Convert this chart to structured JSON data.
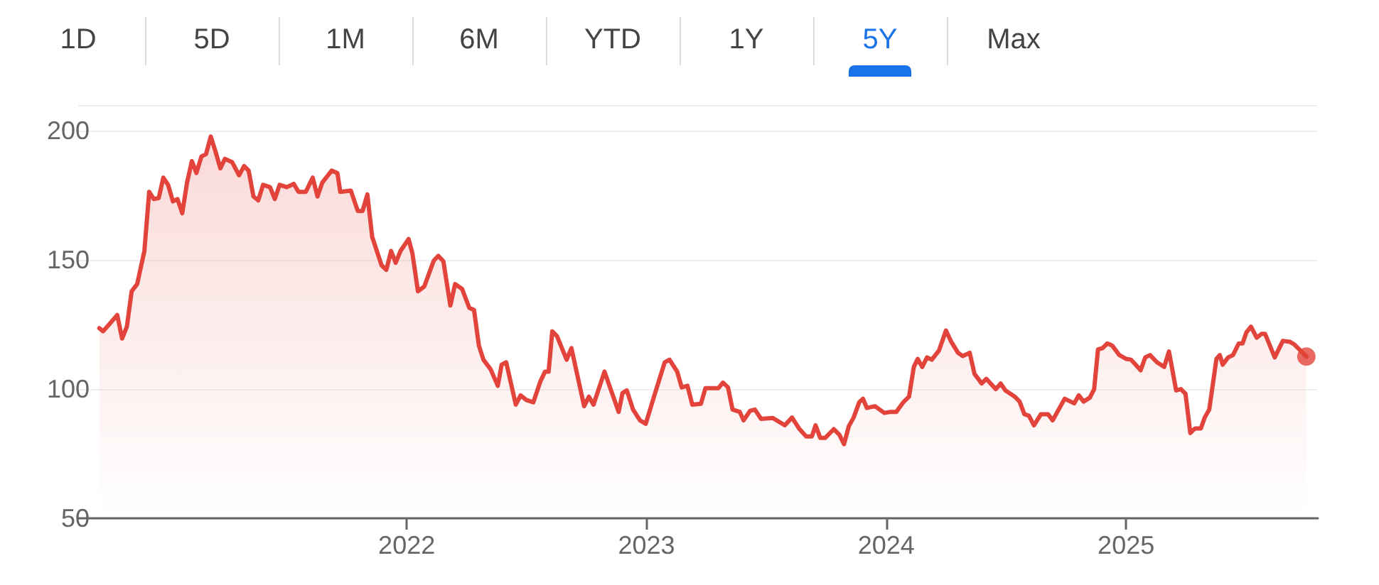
{
  "chart_data": {
    "type": "area",
    "annotations": [
      "1D",
      "5D",
      "1M",
      "6M",
      "YTD",
      "1Y",
      "5Y",
      "Max"
    ],
    "xlim": [
      2020.63,
      2025.8
    ],
    "xticks": [
      2022,
      2023,
      2024,
      2025
    ],
    "ylim": [
      50,
      210
    ],
    "yticks": [
      50,
      100,
      150,
      200
    ],
    "grid": "y",
    "marker": "none",
    "line_style": "solid",
    "series": [
      {
        "color": "#e2433a",
        "x": [
          2020.718,
          2020.734,
          2020.793,
          2020.813,
          2020.833,
          2020.853,
          2020.876,
          2020.906,
          2020.926,
          2020.945,
          2020.966,
          2020.985,
          2021.005,
          2021.025,
          2021.044,
          2021.064,
          2021.084,
          2021.104,
          2021.123,
          2021.144,
          2021.163,
          2021.183,
          2021.203,
          2021.223,
          2021.242,
          2021.272,
          2021.301,
          2021.322,
          2021.341,
          2021.361,
          2021.381,
          2021.401,
          2021.43,
          2021.45,
          2021.47,
          2021.5,
          2021.529,
          2021.549,
          2021.579,
          2021.608,
          2021.628,
          2021.648,
          2021.687,
          2021.711,
          2021.723,
          2021.767,
          2021.796,
          2021.816,
          2021.836,
          2021.856,
          2021.895,
          2021.915,
          2021.935,
          2021.954,
          2021.974,
          2022.008,
          2022.024,
          2022.047,
          2022.073,
          2022.113,
          2022.132,
          2022.153,
          2022.182,
          2022.202,
          2022.231,
          2022.261,
          2022.281,
          2022.301,
          2022.32,
          2022.35,
          2022.38,
          2022.396,
          2022.415,
          2022.455,
          2022.475,
          2022.499,
          2022.528,
          2022.558,
          2022.577,
          2022.592,
          2022.607,
          2022.627,
          2022.667,
          2022.687,
          2022.74,
          2022.76,
          2022.779,
          2022.825,
          2022.884,
          2022.9,
          2022.918,
          2022.944,
          2022.973,
          2022.997,
          2023.033,
          2023.076,
          2023.096,
          2023.128,
          2023.147,
          2023.171,
          2023.191,
          2023.227,
          2023.246,
          2023.3,
          2023.319,
          2023.34,
          2023.359,
          2023.389,
          2023.405,
          2023.432,
          2023.452,
          2023.478,
          2023.527,
          2023.577,
          2023.607,
          2023.636,
          2023.666,
          2023.69,
          2023.705,
          2023.725,
          2023.745,
          2023.781,
          2023.804,
          2023.824,
          2023.844,
          2023.864,
          2023.887,
          2023.903,
          2023.919,
          2023.953,
          2023.992,
          2024.018,
          2024.042,
          2024.071,
          2024.095,
          2024.115,
          2024.131,
          2024.15,
          2024.17,
          2024.19,
          2024.22,
          2024.249,
          2024.269,
          2024.299,
          2024.319,
          2024.348,
          2024.368,
          2024.398,
          2024.417,
          2024.457,
          2024.477,
          2024.497,
          2024.536,
          2024.556,
          2024.576,
          2024.595,
          2024.616,
          2024.645,
          2024.675,
          2024.694,
          2024.744,
          2024.784,
          2024.803,
          2024.823,
          2024.849,
          2024.867,
          2024.883,
          2024.902,
          2024.922,
          2024.942,
          2024.972,
          2025.001,
          2025.021,
          2025.061,
          2025.08,
          2025.1,
          2025.129,
          2025.159,
          2025.179,
          2025.209,
          2025.229,
          2025.248,
          2025.268,
          2025.288,
          2025.312,
          2025.328,
          2025.347,
          2025.377,
          2025.391,
          2025.403,
          2025.426,
          2025.446,
          2025.47,
          2025.486,
          2025.502,
          2025.521,
          2025.545,
          2025.565,
          2025.58,
          2025.62,
          2025.654,
          2025.684,
          2025.703,
          2025.727,
          2025.752
        ],
        "values": [
          123.6,
          122.4,
          128.7,
          119.6,
          124.2,
          137.9,
          140.7,
          153.5,
          176.4,
          173.6,
          174.0,
          181.9,
          179.1,
          172.7,
          173.6,
          168.1,
          180.0,
          188.3,
          183.7,
          190.1,
          191.0,
          197.8,
          191.9,
          185.5,
          189.2,
          187.9,
          182.8,
          186.4,
          184.6,
          174.6,
          173.1,
          179.1,
          178.2,
          173.6,
          179.1,
          178.2,
          179.5,
          176.4,
          176.4,
          181.9,
          174.6,
          180.0,
          184.6,
          183.7,
          176.4,
          176.9,
          169.0,
          169.0,
          175.4,
          159.0,
          148.0,
          146.2,
          153.5,
          148.9,
          153.5,
          158.1,
          152.5,
          137.9,
          139.7,
          149.8,
          151.6,
          149.5,
          132.4,
          140.7,
          138.8,
          131.5,
          130.6,
          116.9,
          111.4,
          107.7,
          101.3,
          109.5,
          110.4,
          94.0,
          97.6,
          95.8,
          94.9,
          103.1,
          106.8,
          106.8,
          122.4,
          120.5,
          111.4,
          115.9,
          93.4,
          97.1,
          94.0,
          106.8,
          91.2,
          98.5,
          99.5,
          92.1,
          87.9,
          86.6,
          97.6,
          110.4,
          111.4,
          106.8,
          100.7,
          101.3,
          94.0,
          94.3,
          100.4,
          100.4,
          102.5,
          100.7,
          92.1,
          91.2,
          87.9,
          91.6,
          92.1,
          88.5,
          88.8,
          86.0,
          89.0,
          84.8,
          81.7,
          81.7,
          86.0,
          81.1,
          81.1,
          84.5,
          82.4,
          78.7,
          85.7,
          89.0,
          94.9,
          96.3,
          92.7,
          93.4,
          90.8,
          91.2,
          91.2,
          94.9,
          97.1,
          108.6,
          111.7,
          108.6,
          112.3,
          111.4,
          115.0,
          122.7,
          118.7,
          114.1,
          112.8,
          114.1,
          105.9,
          102.2,
          104.0,
          100.0,
          102.2,
          99.5,
          97.1,
          95.2,
          90.3,
          89.7,
          86.0,
          90.3,
          90.3,
          87.9,
          96.3,
          94.5,
          97.6,
          95.2,
          96.7,
          100.0,
          115.4,
          115.9,
          117.7,
          116.9,
          113.2,
          111.7,
          111.4,
          107.3,
          112.3,
          113.2,
          110.4,
          108.6,
          114.6,
          99.5,
          100.0,
          98.2,
          83.0,
          84.8,
          84.8,
          89.0,
          92.1,
          111.7,
          113.2,
          109.5,
          112.3,
          113.2,
          117.7,
          117.7,
          122.0,
          124.2,
          119.9,
          121.4,
          121.4,
          112.3,
          118.7,
          118.3,
          117.2,
          115.0,
          112.6
        ]
      },
      {
        "type": "scatter",
        "color": "#e2433a",
        "marker": "circle",
        "x": [
          2025.752
        ],
        "values": [
          112.6
        ]
      }
    ]
  }
}
